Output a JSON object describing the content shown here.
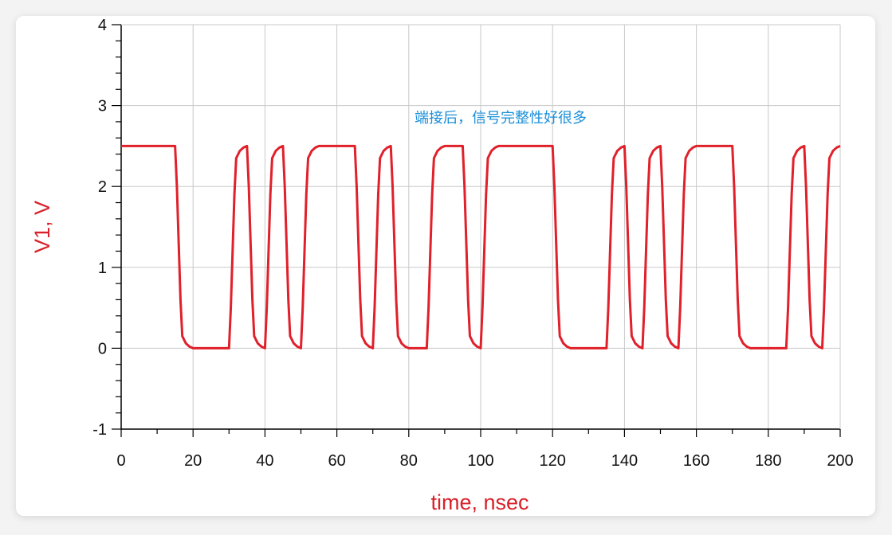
{
  "chart_data": {
    "type": "line",
    "xlabel": "time, nsec",
    "ylabel": "V1, V",
    "annotation": "端接后，信号完整性好很多",
    "xlim": [
      0,
      200
    ],
    "ylim": [
      -1,
      4
    ],
    "x_ticks": [
      0,
      20,
      40,
      60,
      80,
      100,
      120,
      140,
      160,
      180,
      200
    ],
    "y_ticks": [
      -1,
      0,
      1,
      2,
      3,
      4
    ],
    "grid": true,
    "series": [
      {
        "color": "#e0202a",
        "x": [
          0,
          15,
          15.5,
          16,
          16.5,
          17,
          18,
          19,
          20,
          30,
          30.5,
          31,
          31.5,
          32,
          33,
          34,
          35,
          35.5,
          36,
          36.5,
          37,
          38,
          39,
          40,
          40.5,
          41,
          41.5,
          42,
          43,
          44,
          45,
          45.5,
          46,
          46.5,
          47,
          48,
          49,
          50,
          50.5,
          51,
          51.5,
          52,
          53,
          54,
          55,
          65,
          65.5,
          66,
          66.5,
          67,
          68,
          69,
          70,
          70.5,
          71,
          71.5,
          72,
          73,
          74,
          75,
          75.5,
          76,
          76.5,
          77,
          78,
          79,
          80,
          85,
          85.5,
          86,
          86.5,
          87,
          88,
          89,
          90,
          95,
          95.5,
          96,
          96.5,
          97,
          98,
          99,
          100,
          100.5,
          101,
          101.5,
          102,
          103,
          104,
          105,
          120,
          120.5,
          121,
          121.5,
          122,
          123,
          124,
          125,
          135,
          135.5,
          136,
          136.5,
          137,
          138,
          139,
          140,
          140.5,
          141,
          141.5,
          142,
          143,
          144,
          145,
          145.5,
          146,
          146.5,
          147,
          148,
          149,
          150,
          150.5,
          151,
          151.5,
          152,
          153,
          154,
          155,
          155.5,
          156,
          156.5,
          157,
          158,
          159,
          160,
          170,
          170.5,
          171,
          171.5,
          172,
          173,
          174,
          175,
          185,
          185.5,
          186,
          186.5,
          187,
          188,
          189,
          190,
          190.5,
          191,
          191.5,
          192,
          193,
          194,
          195,
          195.5,
          196,
          196.5,
          197,
          198,
          199,
          200
        ],
        "y": [
          2.5,
          2.5,
          2.0,
          1.3,
          0.6,
          0.15,
          0.06,
          0.02,
          0,
          0,
          0.5,
          1.2,
          1.9,
          2.35,
          2.44,
          2.48,
          2.5,
          2.0,
          1.3,
          0.6,
          0.15,
          0.06,
          0.02,
          0,
          0.5,
          1.2,
          1.9,
          2.35,
          2.44,
          2.48,
          2.5,
          2.0,
          1.3,
          0.6,
          0.15,
          0.06,
          0.02,
          0,
          0.5,
          1.2,
          1.9,
          2.35,
          2.44,
          2.48,
          2.5,
          2.5,
          2.0,
          1.3,
          0.6,
          0.15,
          0.06,
          0.02,
          0,
          0.5,
          1.2,
          1.9,
          2.35,
          2.44,
          2.48,
          2.5,
          2.0,
          1.3,
          0.6,
          0.15,
          0.06,
          0.02,
          0,
          0,
          0.5,
          1.2,
          1.9,
          2.35,
          2.44,
          2.48,
          2.5,
          2.5,
          2.0,
          1.3,
          0.6,
          0.15,
          0.06,
          0.02,
          0,
          0.5,
          1.2,
          1.9,
          2.35,
          2.44,
          2.48,
          2.5,
          2.5,
          2.0,
          1.3,
          0.6,
          0.15,
          0.06,
          0.02,
          0,
          0,
          0.5,
          1.2,
          1.9,
          2.35,
          2.44,
          2.48,
          2.5,
          2.0,
          1.3,
          0.6,
          0.15,
          0.06,
          0.02,
          0,
          0.5,
          1.2,
          1.9,
          2.35,
          2.44,
          2.48,
          2.5,
          2.0,
          1.3,
          0.6,
          0.15,
          0.06,
          0.02,
          0,
          0.5,
          1.2,
          1.9,
          2.35,
          2.44,
          2.48,
          2.5,
          2.5,
          2.0,
          1.3,
          0.6,
          0.15,
          0.06,
          0.02,
          0,
          0,
          0.5,
          1.2,
          1.9,
          2.35,
          2.44,
          2.48,
          2.5,
          2.0,
          1.3,
          0.6,
          0.15,
          0.06,
          0.02,
          0,
          0.5,
          1.2,
          1.9,
          2.35,
          2.44,
          2.48,
          2.5
        ]
      }
    ],
    "colors": {
      "axis_title": "#d9202a",
      "annotation": "#1a8fd8",
      "grid": "#c8c8c8",
      "axis": "#000000"
    }
  }
}
